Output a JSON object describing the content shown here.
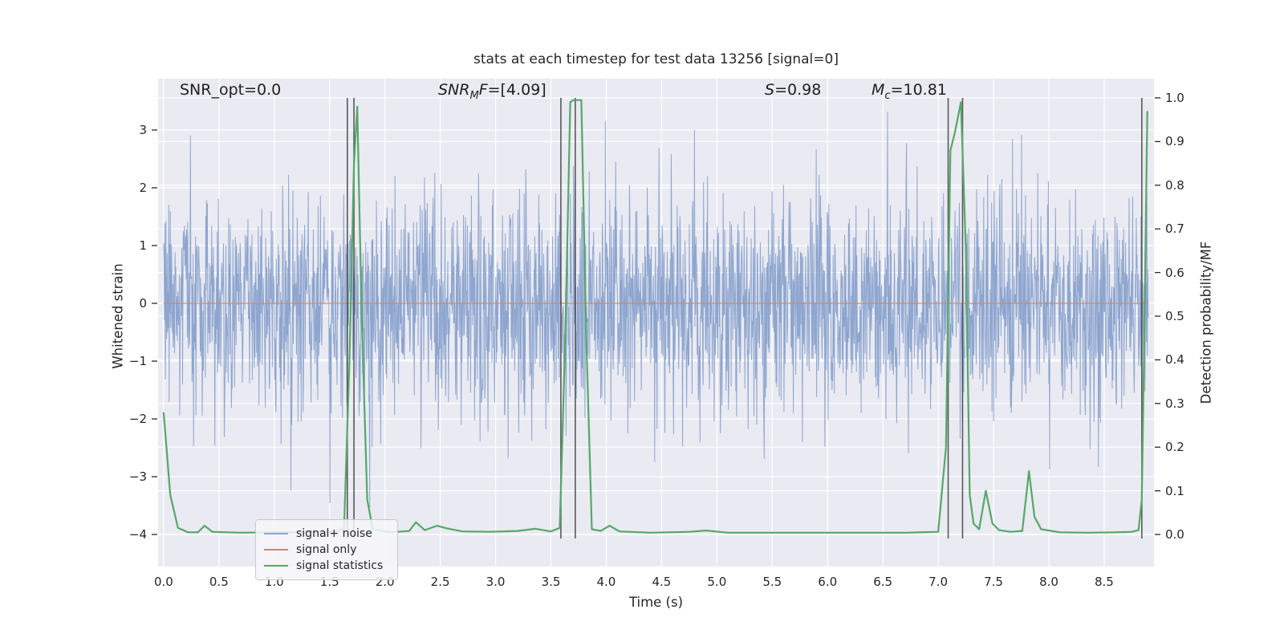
{
  "chart_data": {
    "type": "line",
    "title": "stats at each timestep for test data 13256 [signal=0]",
    "xlabel": "Time (s)",
    "ylabel_left": "Whitened strain",
    "ylabel_right": "Detection probability/MF",
    "xlim": [
      -0.05,
      8.95
    ],
    "ylim_left": [
      -4.56,
      3.89
    ],
    "ylim_right": [
      -0.073,
      1.044
    ],
    "x_ticks": [
      0.0,
      0.5,
      1.0,
      1.5,
      2.0,
      2.5,
      3.0,
      3.5,
      4.0,
      4.5,
      5.0,
      5.5,
      6.0,
      6.5,
      7.0,
      7.5,
      8.0,
      8.5
    ],
    "y_ticks_left": [
      3,
      2,
      1,
      0,
      -1,
      -2,
      -3,
      -4
    ],
    "y_ticks_right": [
      1.0,
      0.9,
      0.8,
      0.7,
      0.6,
      0.5,
      0.4,
      0.3,
      0.2,
      0.1,
      0.0
    ],
    "grid": true,
    "plot_bg": "#eaeaf2",
    "grid_color": "#ffffff",
    "legend_position": "lower left",
    "series": [
      {
        "name": "signal+ noise",
        "axis": "left",
        "color": "#8ea6cf",
        "style": "gaussian_noise",
        "params": {
          "n": 2500,
          "mean": 0,
          "std": 0.97,
          "seed": 9,
          "t_start": 0,
          "t_end": 8.9
        }
      },
      {
        "name": "signal only",
        "axis": "left",
        "color": "#dd8452",
        "opacity": 0.6,
        "style": "constant",
        "value": 0,
        "t_start": 0,
        "t_end": 8.9
      },
      {
        "name": "signal statistics",
        "axis": "right",
        "color": "#55a868",
        "style": "keypoints",
        "points": [
          [
            0,
            0.28
          ],
          [
            0.06,
            0.09
          ],
          [
            0.13,
            0.015
          ],
          [
            0.22,
            0.005
          ],
          [
            0.31,
            0.005
          ],
          [
            0.37,
            0.02
          ],
          [
            0.44,
            0.006
          ],
          [
            0.7,
            0.004
          ],
          [
            1.0,
            0.005
          ],
          [
            1.3,
            0.005
          ],
          [
            1.55,
            0.007
          ],
          [
            1.63,
            0.012
          ],
          [
            1.68,
            0.4
          ],
          [
            1.72,
            0.85
          ],
          [
            1.75,
            0.98
          ],
          [
            1.79,
            0.5
          ],
          [
            1.84,
            0.08
          ],
          [
            1.89,
            0.012
          ],
          [
            2.05,
            0.005
          ],
          [
            2.22,
            0.008
          ],
          [
            2.28,
            0.028
          ],
          [
            2.36,
            0.01
          ],
          [
            2.47,
            0.02
          ],
          [
            2.56,
            0.014
          ],
          [
            2.7,
            0.007
          ],
          [
            2.95,
            0.006
          ],
          [
            3.2,
            0.008
          ],
          [
            3.36,
            0.013
          ],
          [
            3.5,
            0.007
          ],
          [
            3.58,
            0.015
          ],
          [
            3.63,
            0.45
          ],
          [
            3.675,
            0.99
          ],
          [
            3.7,
            0.995
          ],
          [
            3.775,
            0.995
          ],
          [
            3.82,
            0.45
          ],
          [
            3.87,
            0.012
          ],
          [
            3.95,
            0.008
          ],
          [
            4.03,
            0.02
          ],
          [
            4.12,
            0.007
          ],
          [
            4.4,
            0.004
          ],
          [
            4.75,
            0.006
          ],
          [
            4.9,
            0.009
          ],
          [
            5.1,
            0.004
          ],
          [
            5.5,
            0.004
          ],
          [
            5.9,
            0.004
          ],
          [
            6.3,
            0.004
          ],
          [
            6.7,
            0.004
          ],
          [
            7.0,
            0.006
          ],
          [
            7.07,
            0.2
          ],
          [
            7.11,
            0.88
          ],
          [
            7.15,
            0.92
          ],
          [
            7.205,
            0.99
          ],
          [
            7.25,
            0.65
          ],
          [
            7.285,
            0.09
          ],
          [
            7.32,
            0.025
          ],
          [
            7.37,
            0.012
          ],
          [
            7.43,
            0.1
          ],
          [
            7.49,
            0.025
          ],
          [
            7.55,
            0.01
          ],
          [
            7.65,
            0.006
          ],
          [
            7.76,
            0.008
          ],
          [
            7.82,
            0.145
          ],
          [
            7.87,
            0.04
          ],
          [
            7.93,
            0.012
          ],
          [
            8.1,
            0.005
          ],
          [
            8.35,
            0.004
          ],
          [
            8.6,
            0.005
          ],
          [
            8.75,
            0.006
          ],
          [
            8.81,
            0.01
          ],
          [
            8.84,
            0.08
          ],
          [
            8.865,
            0.5
          ],
          [
            8.89,
            0.97
          ]
        ]
      }
    ],
    "event_markers": {
      "color": "#404040",
      "times": [
        1.66,
        1.72,
        3.59,
        3.72,
        7.09,
        7.22,
        8.84
      ],
      "span_right_axis": [
        0,
        1
      ]
    },
    "annotations": {
      "snr_opt": {
        "text": "SNR_opt=0.0"
      },
      "snr_mf": {
        "pre": "SNR",
        "sub": "M",
        "mid": "F",
        "val": "=[4.09]"
      },
      "s": {
        "pre": "S",
        "val": "=0.98"
      },
      "mc": {
        "pre": "M",
        "sub": "c",
        "val": "=10.81"
      }
    }
  }
}
